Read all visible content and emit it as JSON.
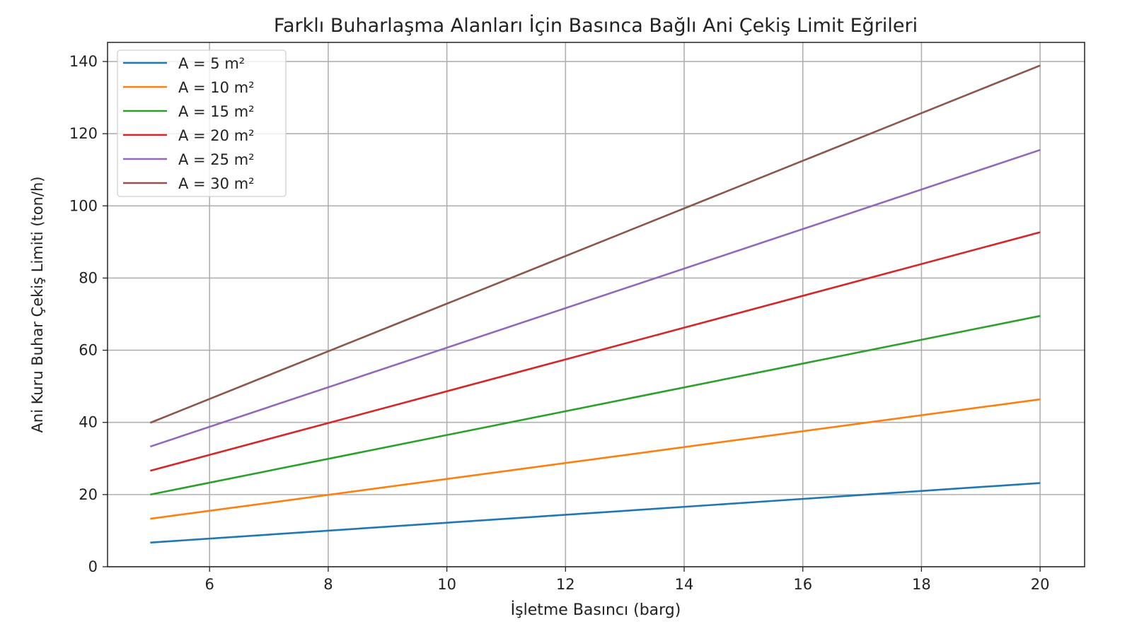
{
  "chart_data": {
    "type": "line",
    "title": "Farklı Buharlaşma Alanları İçin Basınca Bağlı Ani Çekiş Limit Eğrileri",
    "xlabel": "İşletme Basıncı (barg)",
    "ylabel": "Ani Kuru Buhar Çekiş Limiti (ton/h)",
    "xlim": [
      4.28,
      20.75
    ],
    "ylim": [
      0,
      145.3
    ],
    "xticks": [
      6,
      8,
      10,
      12,
      14,
      16,
      18,
      20
    ],
    "yticks": [
      0,
      20,
      40,
      60,
      80,
      100,
      120,
      140
    ],
    "grid": true,
    "legend_position": "top-left",
    "x": [
      5,
      20
    ],
    "series": [
      {
        "name": "A = 5 m²",
        "color": "#1f77b4",
        "values": [
          6.7,
          23.2
        ]
      },
      {
        "name": "A = 10 m²",
        "color": "#ff7f0e",
        "values": [
          13.3,
          46.4
        ]
      },
      {
        "name": "A = 15 m²",
        "color": "#2ca02c",
        "values": [
          20.0,
          69.5
        ]
      },
      {
        "name": "A = 20 m²",
        "color": "#d62728",
        "values": [
          26.6,
          92.7
        ]
      },
      {
        "name": "A = 25 m²",
        "color": "#9467bd",
        "values": [
          33.3,
          115.5
        ]
      },
      {
        "name": "A = 30 m²",
        "color": "#8c564b",
        "values": [
          39.9,
          138.9
        ]
      }
    ]
  }
}
